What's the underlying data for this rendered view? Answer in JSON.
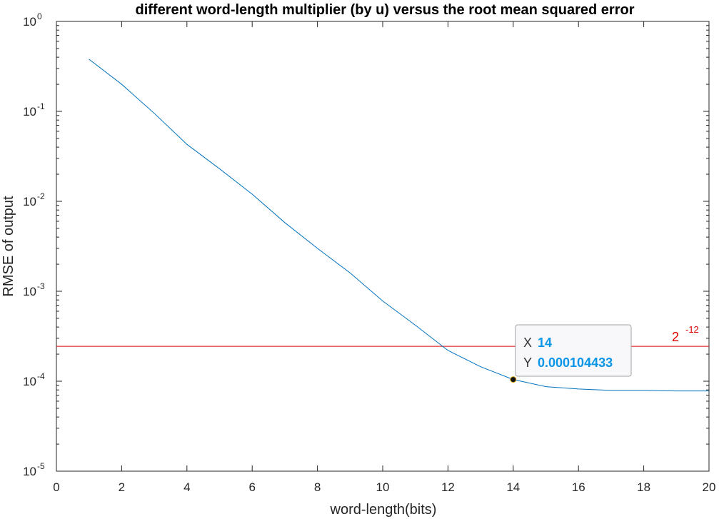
{
  "chart_data": {
    "type": "line",
    "title": "different word-length multiplier (by u) versus the root mean squared error",
    "xlabel": "word-length(bits)",
    "ylabel": "RMSE of output",
    "xlim": [
      0,
      20
    ],
    "ylim": [
      1e-05,
      1
    ],
    "yscale": "log",
    "xticks": [
      "0",
      "2",
      "4",
      "6",
      "8",
      "10",
      "12",
      "14",
      "16",
      "18",
      "20"
    ],
    "yticks": [
      {
        "base": "10",
        "exp": "0"
      },
      {
        "base": "10",
        "exp": "-1"
      },
      {
        "base": "10",
        "exp": "-2"
      },
      {
        "base": "10",
        "exp": "-3"
      },
      {
        "base": "10",
        "exp": "-4"
      },
      {
        "base": "10",
        "exp": "-5"
      }
    ],
    "grid": false,
    "series": [
      {
        "color": "#0072bd",
        "x": [
          1,
          2,
          3,
          4,
          5,
          6,
          7,
          8,
          9,
          10,
          11,
          12,
          13,
          14,
          15,
          16,
          17,
          18,
          19,
          20
        ],
        "y": [
          0.38,
          0.2,
          0.095,
          0.043,
          0.023,
          0.012,
          0.0058,
          0.003,
          0.0016,
          0.00078,
          0.00042,
          0.00022,
          0.000145,
          0.000104433,
          8.7e-05,
          8.2e-05,
          7.9e-05,
          7.9e-05,
          7.8e-05,
          7.8e-05
        ]
      }
    ],
    "reference_line": {
      "y": 0.000244140625,
      "color": "#e00000",
      "label_base": "2",
      "label_exp": "-12"
    },
    "datatip": {
      "x_key": "X",
      "x_value": "14",
      "y_key": "Y",
      "y_value": "0.000104433",
      "x": 14,
      "y": 0.000104433
    }
  }
}
